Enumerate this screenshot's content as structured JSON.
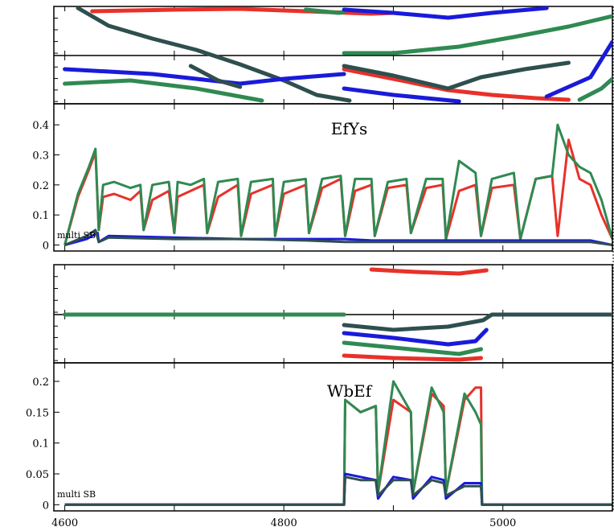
{
  "chart_data": [
    {
      "type": "line",
      "title": "EfYs",
      "annotation": "multi SB",
      "xlim": [
        4590,
        5100
      ],
      "ylim": [
        -0.02,
        0.47
      ],
      "yticks": [
        0,
        0.1,
        0.2,
        0.3,
        0.4
      ],
      "ytick_labels": [
        "0",
        "0.1",
        "0.2",
        "0.3",
        "0.4"
      ],
      "grid": false,
      "series": [
        {
          "color": "#e8312a",
          "x": [
            4600,
            4612,
            4622,
            4628,
            4631,
            4635,
            4645,
            4660,
            4669,
            4672,
            4680,
            4695,
            4700,
            4703,
            4715,
            4727,
            4730,
            4740,
            4758,
            4761,
            4770,
            4790,
            4792,
            4800,
            4820,
            4823,
            4835,
            4852,
            4856,
            4865,
            4880,
            4883,
            4895,
            4912,
            4916,
            4930,
            4945,
            4948,
            4960,
            4975,
            4980,
            4990,
            5010,
            5016,
            5030,
            5045,
            5050,
            5060,
            5070,
            5080,
            5090,
            5100
          ],
          "y": [
            0.0,
            0.16,
            0.25,
            0.31,
            0.05,
            0.16,
            0.17,
            0.15,
            0.18,
            0.05,
            0.15,
            0.18,
            0.04,
            0.16,
            0.18,
            0.2,
            0.04,
            0.16,
            0.2,
            0.03,
            0.17,
            0.2,
            0.03,
            0.17,
            0.2,
            0.04,
            0.19,
            0.22,
            0.03,
            0.18,
            0.2,
            0.03,
            0.19,
            0.2,
            0.04,
            0.19,
            0.2,
            0.02,
            0.18,
            0.2,
            0.03,
            0.19,
            0.2,
            0.02,
            0.22,
            0.23,
            0.03,
            0.35,
            0.22,
            0.2,
            0.1,
            0.02
          ]
        },
        {
          "color": "#2f8a52",
          "x": [
            4600,
            4612,
            4622,
            4628,
            4631,
            4635,
            4645,
            4660,
            4669,
            4672,
            4680,
            4695,
            4700,
            4703,
            4715,
            4727,
            4730,
            4740,
            4758,
            4761,
            4770,
            4790,
            4792,
            4800,
            4820,
            4823,
            4835,
            4852,
            4856,
            4865,
            4880,
            4883,
            4895,
            4912,
            4916,
            4930,
            4945,
            4948,
            4960,
            4975,
            4980,
            4990,
            5010,
            5016,
            5030,
            5045,
            5050,
            5060,
            5070,
            5080,
            5090,
            5100
          ],
          "y": [
            0.0,
            0.17,
            0.26,
            0.32,
            0.05,
            0.2,
            0.21,
            0.19,
            0.2,
            0.05,
            0.2,
            0.21,
            0.04,
            0.21,
            0.2,
            0.22,
            0.04,
            0.21,
            0.22,
            0.03,
            0.21,
            0.22,
            0.03,
            0.21,
            0.22,
            0.04,
            0.22,
            0.23,
            0.03,
            0.22,
            0.22,
            0.03,
            0.21,
            0.22,
            0.04,
            0.22,
            0.22,
            0.02,
            0.28,
            0.24,
            0.03,
            0.22,
            0.24,
            0.02,
            0.22,
            0.23,
            0.4,
            0.3,
            0.26,
            0.24,
            0.15,
            0.02
          ]
        },
        {
          "color": "#1a1adb",
          "x": [
            4600,
            4620,
            4630,
            4631,
            4640,
            4700,
            4760,
            4820,
            4856,
            4880,
            4920,
            4960,
            5000,
            5020,
            5050,
            5080,
            5100
          ],
          "y": [
            0.0,
            0.02,
            0.04,
            0.01,
            0.03,
            0.025,
            0.02,
            0.02,
            0.02,
            0.015,
            0.015,
            0.015,
            0.015,
            0.015,
            0.015,
            0.015,
            0.0
          ]
        },
        {
          "color": "#2f4f4f",
          "x": [
            4600,
            4620,
            4628,
            4631,
            4640,
            4700,
            4760,
            4820,
            4856,
            4880,
            4920,
            4960,
            5000,
            5020,
            5050,
            5080,
            5100
          ],
          "y": [
            0.0,
            0.03,
            0.05,
            0.01,
            0.025,
            0.02,
            0.02,
            0.015,
            0.01,
            0.01,
            0.01,
            0.01,
            0.01,
            0.01,
            0.01,
            0.01,
            0.0
          ]
        }
      ]
    },
    {
      "type": "line",
      "title": "WbEf",
      "annotation": "multi SB",
      "xlim": [
        4590,
        5100
      ],
      "ylim": [
        -0.01,
        0.23
      ],
      "xticks": [
        4600,
        4800,
        5000
      ],
      "xtick_labels": [
        "4600",
        "4800",
        "5000"
      ],
      "yticks": [
        0,
        0.05,
        0.1,
        0.15,
        0.2
      ],
      "ytick_labels": [
        "0",
        "0.05",
        "0.1",
        "0.15",
        "0.2"
      ],
      "grid": false,
      "series": [
        {
          "color": "#e8312a",
          "x": [
            4600,
            4855,
            4856,
            4870,
            4884,
            4886,
            4900,
            4916,
            4918,
            4935,
            4946,
            4948,
            4965,
            4975,
            4980,
            4981,
            5100
          ],
          "y": [
            0.0,
            0.0,
            0.17,
            0.15,
            0.16,
            0.02,
            0.17,
            0.15,
            0.02,
            0.18,
            0.16,
            0.02,
            0.17,
            0.19,
            0.19,
            0.0,
            0.0
          ]
        },
        {
          "color": "#2f8a52",
          "x": [
            4600,
            4855,
            4856,
            4870,
            4884,
            4886,
            4900,
            4916,
            4918,
            4935,
            4946,
            4948,
            4965,
            4975,
            4980,
            4981,
            5100
          ],
          "y": [
            0.0,
            0.0,
            0.17,
            0.15,
            0.16,
            0.02,
            0.2,
            0.15,
            0.02,
            0.19,
            0.15,
            0.02,
            0.18,
            0.15,
            0.13,
            0.0,
            0.0
          ]
        },
        {
          "color": "#1a1adb",
          "x": [
            4600,
            4855,
            4856,
            4870,
            4884,
            4886,
            4900,
            4916,
            4918,
            4935,
            4946,
            4948,
            4965,
            4980,
            4981,
            5100
          ],
          "y": [
            0.0,
            0.0,
            0.05,
            0.045,
            0.04,
            0.01,
            0.045,
            0.04,
            0.01,
            0.045,
            0.04,
            0.01,
            0.035,
            0.035,
            0.0,
            0.0
          ]
        },
        {
          "color": "#2f4f4f",
          "x": [
            4600,
            4855,
            4856,
            4870,
            4884,
            4886,
            4900,
            4916,
            4918,
            4935,
            4946,
            4948,
            4965,
            4980,
            4981,
            5100
          ],
          "y": [
            0.0,
            0.0,
            0.045,
            0.04,
            0.04,
            0.015,
            0.04,
            0.04,
            0.015,
            0.04,
            0.035,
            0.015,
            0.03,
            0.03,
            0.0,
            0.0
          ]
        }
      ]
    }
  ]
}
